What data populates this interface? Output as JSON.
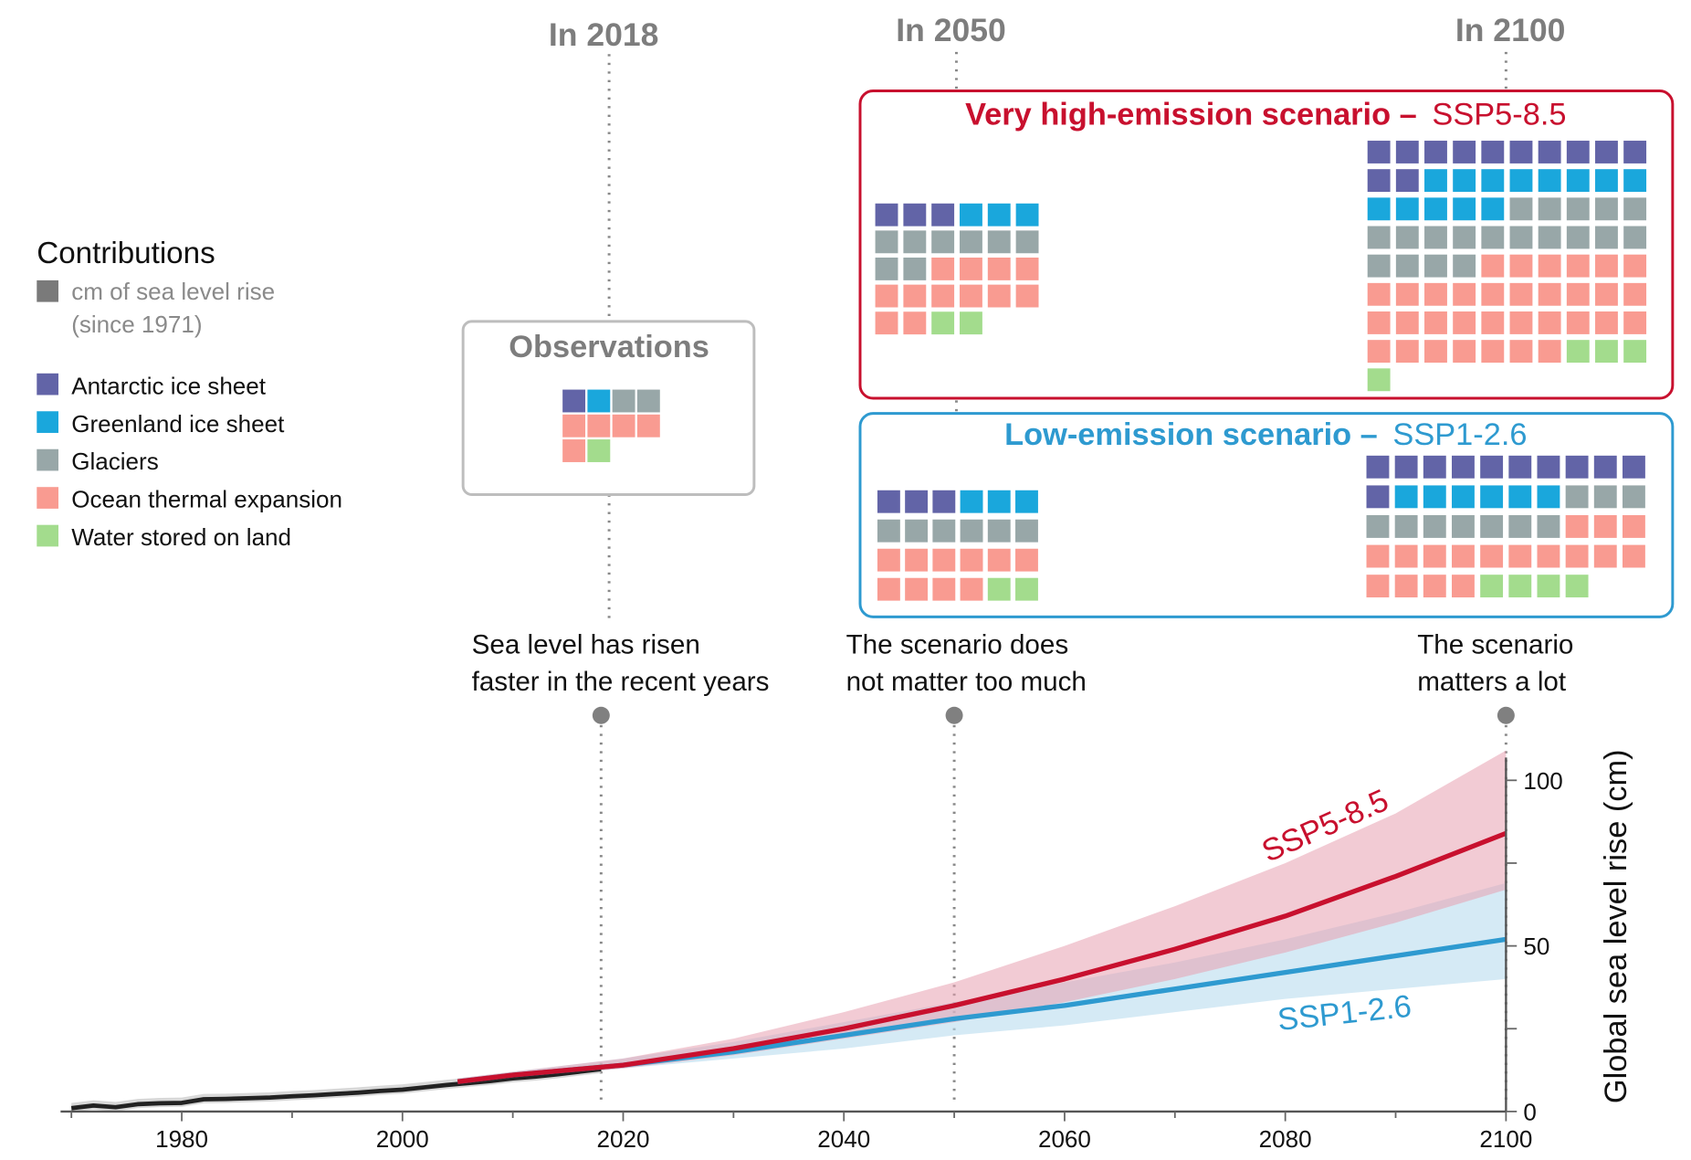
{
  "legend": {
    "title": "Contributions",
    "unit_line1": "cm of sea level rise",
    "unit_line2": "(since 1971)",
    "items": [
      {
        "label": "Antarctic ice sheet",
        "color": "#6264a7"
      },
      {
        "label": "Greenland ice sheet",
        "color": "#1aa7dc"
      },
      {
        "label": "Glaciers",
        "color": "#98a7a8"
      },
      {
        "label": "Ocean thermal expansion",
        "color": "#f99b91"
      },
      {
        "label": "Water stored on land",
        "color": "#a3dc8d"
      }
    ]
  },
  "markers": [
    {
      "label": "In 2018",
      "year": 2018
    },
    {
      "label": "In 2050",
      "year": 2050
    },
    {
      "label": "In 2100",
      "year": 2100
    }
  ],
  "panels": {
    "observations": {
      "title": "Observations",
      "rows": [
        [
          0,
          1,
          2,
          2
        ],
        [
          3,
          3,
          3,
          3
        ],
        [
          3,
          4
        ]
      ]
    },
    "high": {
      "title_bold": "Very high-emission scenario –",
      "title_name": "SSP5-8.5",
      "color": "#c8102e",
      "rows_2050": [
        [
          0,
          0,
          0,
          1,
          1,
          1
        ],
        [
          2,
          2,
          2,
          2,
          2,
          2
        ],
        [
          2,
          2,
          3,
          3,
          3,
          3
        ],
        [
          3,
          3,
          3,
          3,
          3,
          3
        ],
        [
          3,
          3,
          4,
          4
        ]
      ],
      "rows_2100": [
        [
          0,
          0,
          0,
          0,
          0,
          0,
          0,
          0,
          0,
          0
        ],
        [
          0,
          0,
          1,
          1,
          1,
          1,
          1,
          1,
          1,
          1
        ],
        [
          1,
          1,
          1,
          1,
          1,
          2,
          2,
          2,
          2,
          2
        ],
        [
          2,
          2,
          2,
          2,
          2,
          2,
          2,
          2,
          2,
          2
        ],
        [
          2,
          2,
          2,
          2,
          3,
          3,
          3,
          3,
          3,
          3
        ],
        [
          3,
          3,
          3,
          3,
          3,
          3,
          3,
          3,
          3,
          3
        ],
        [
          3,
          3,
          3,
          3,
          3,
          3,
          3,
          3,
          3,
          3
        ],
        [
          3,
          3,
          3,
          3,
          3,
          3,
          3,
          4,
          4,
          4
        ],
        [
          4
        ]
      ]
    },
    "low": {
      "title_bold": "Low-emission scenario –",
      "title_name": "SSP1-2.6",
      "color": "#2e9ad0",
      "rows_2050": [
        [
          0,
          0,
          0,
          1,
          1,
          1
        ],
        [
          2,
          2,
          2,
          2,
          2,
          2
        ],
        [
          3,
          3,
          3,
          3,
          3,
          3
        ],
        [
          3,
          3,
          3,
          3,
          4,
          4
        ]
      ],
      "rows_2100": [
        [
          0,
          0,
          0,
          0,
          0,
          0,
          0,
          0,
          0,
          0
        ],
        [
          0,
          1,
          1,
          1,
          1,
          1,
          1,
          2,
          2,
          2
        ],
        [
          2,
          2,
          2,
          2,
          2,
          2,
          2,
          3,
          3,
          3
        ],
        [
          3,
          3,
          3,
          3,
          3,
          3,
          3,
          3,
          3,
          3
        ],
        [
          3,
          3,
          3,
          3,
          4,
          4,
          4,
          4
        ]
      ]
    }
  },
  "annotations": [
    {
      "line1": "Sea level has risen",
      "line2": "faster in the recent years"
    },
    {
      "line1": "The scenario does",
      "line2": "not matter too much"
    },
    {
      "line1": "The scenario",
      "line2": "matters a lot"
    }
  ],
  "chart_data": {
    "type": "line",
    "ylabel": "Global sea level rise (cm)",
    "xlim": [
      1970,
      2100
    ],
    "ylim": [
      0,
      115
    ],
    "x_ticks": [
      1980,
      2000,
      2020,
      2040,
      2060,
      2080,
      2100
    ],
    "y_ticks": [
      0,
      50,
      100
    ],
    "series": [
      {
        "name": "",
        "color": "#222222",
        "x": [
          1970,
          1972,
          1974,
          1976,
          1978,
          1980,
          1982,
          1984,
          1986,
          1988,
          1990,
          1992,
          1994,
          1996,
          1998,
          2000,
          2002,
          2004,
          2006,
          2008,
          2010,
          2012,
          2014,
          2016,
          2018
        ],
        "y": [
          1.0,
          1.8,
          1.3,
          2.2,
          2.5,
          2.6,
          3.7,
          3.8,
          4.0,
          4.2,
          4.6,
          4.9,
          5.3,
          5.7,
          6.2,
          6.6,
          7.3,
          8.0,
          8.6,
          9.2,
          10.0,
          10.5,
          11.2,
          12.0,
          12.8
        ]
      },
      {
        "name": "SSP5-8.5",
        "color": "#c8102e",
        "x": [
          2005,
          2010,
          2020,
          2030,
          2040,
          2050,
          2060,
          2070,
          2080,
          2090,
          2100
        ],
        "y": [
          9,
          11,
          14,
          19,
          25,
          32,
          40,
          49,
          59,
          71,
          84
        ],
        "low": [
          8,
          10,
          13,
          17,
          22,
          27,
          33,
          40,
          48,
          57,
          67
        ],
        "high": [
          10,
          12,
          16,
          22,
          30,
          39,
          50,
          62,
          75,
          90,
          109
        ]
      },
      {
        "name": "SSP1-2.6",
        "color": "#2e9ad0",
        "x": [
          2005,
          2010,
          2020,
          2030,
          2040,
          2050,
          2060,
          2070,
          2080,
          2090,
          2100
        ],
        "y": [
          9,
          11,
          14,
          18,
          23,
          28,
          32,
          37,
          42,
          47,
          52
        ],
        "low": [
          8,
          10,
          13,
          16,
          19,
          23,
          26,
          30,
          34,
          37,
          40
        ],
        "high": [
          10,
          12,
          16,
          21,
          27,
          33,
          39,
          45,
          52,
          60,
          69
        ]
      }
    ]
  }
}
